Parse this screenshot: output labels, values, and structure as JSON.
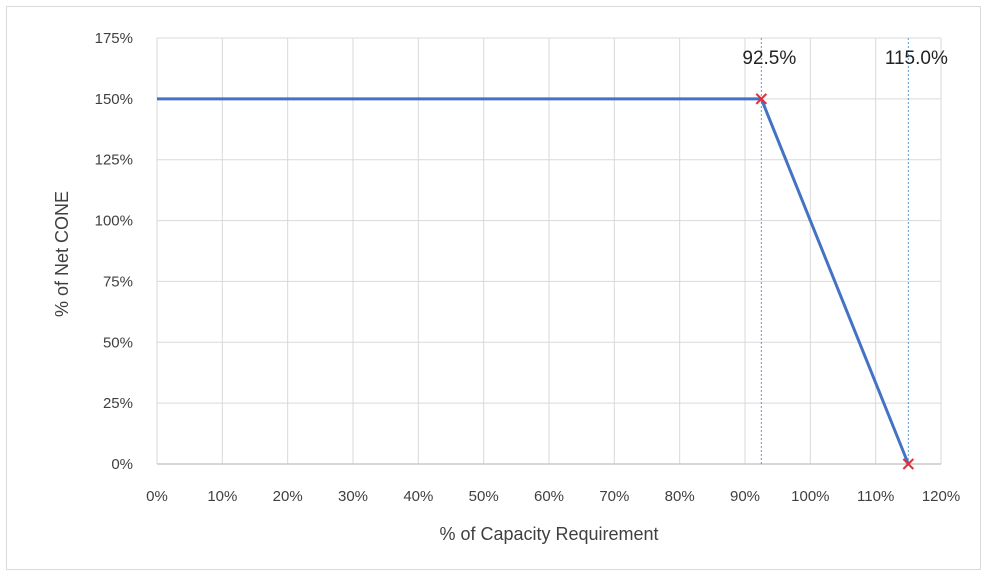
{
  "chart_data": {
    "type": "line",
    "title": "",
    "xlabel": "% of Capacity Requirement",
    "ylabel": "% of Net CONE",
    "xlim": [
      0,
      120
    ],
    "ylim": [
      0,
      175
    ],
    "x_ticks": [
      "0%",
      "10%",
      "20%",
      "30%",
      "40%",
      "50%",
      "60%",
      "70%",
      "80%",
      "90%",
      "100%",
      "110%",
      "120%"
    ],
    "y_ticks": [
      "0%",
      "25%",
      "50%",
      "75%",
      "100%",
      "125%",
      "150%",
      "175%"
    ],
    "grid": true,
    "series": [
      {
        "color": "#4472c4",
        "points": [
          [
            0,
            150
          ],
          [
            92.5,
            150
          ],
          [
            115,
            0
          ]
        ]
      }
    ],
    "markers": [
      {
        "x": 92.5,
        "y": 150,
        "symbol": "x",
        "color": "#e0303c"
      },
      {
        "x": 115,
        "y": 0,
        "symbol": "x",
        "color": "#e0303c"
      }
    ],
    "annotations": [
      {
        "x": 92.5,
        "text": "92.5%"
      },
      {
        "x": 115,
        "text": "115.0%"
      }
    ],
    "guide_color": "#5b9bd5"
  }
}
